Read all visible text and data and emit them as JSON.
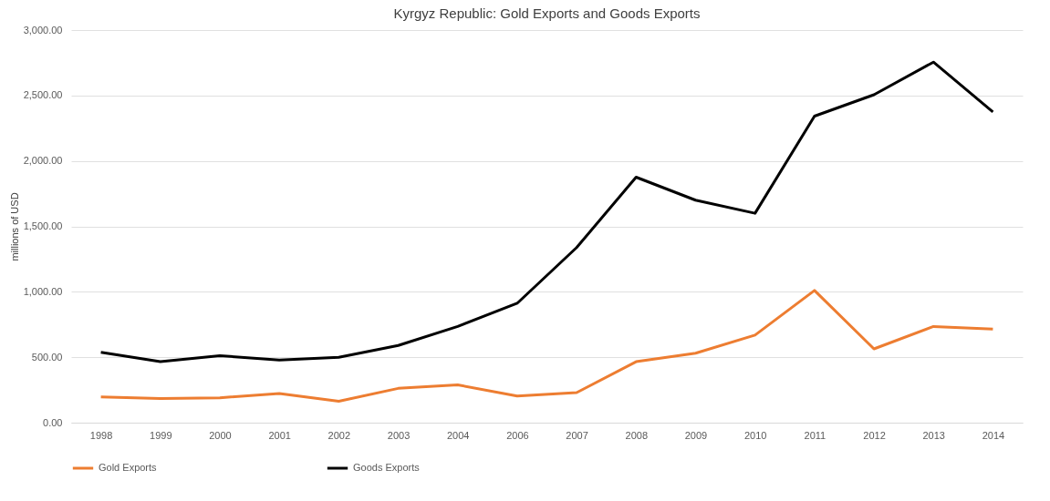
{
  "chart_data": {
    "type": "line",
    "title": "Kyrgyz Republic:  Gold Exports and Goods Exports",
    "ylabel": "millions of USD",
    "categories": [
      "1998",
      "1999",
      "2000",
      "2001",
      "2002",
      "2003",
      "2004",
      "2006",
      "2007",
      "2008",
      "2009",
      "2010",
      "2011",
      "2012",
      "2013",
      "2014"
    ],
    "series": [
      {
        "name": "Gold Exports",
        "color": "#ed7d31",
        "values": [
          197,
          184,
          190,
          223,
          164,
          262,
          289,
          203,
          230,
          466,
          531,
          669,
          1010,
          564,
          735,
          715
        ]
      },
      {
        "name": "Goods Exports",
        "color": "#000000",
        "values": [
          538,
          466,
          512,
          479,
          499,
          590,
          735,
          912,
          1338,
          1876,
          1700,
          1600,
          2342,
          2506,
          2755,
          2375
        ]
      }
    ],
    "ylim": [
      0,
      3000
    ],
    "yticks": [
      {
        "value": 0,
        "label": "0.00"
      },
      {
        "value": 500,
        "label": "500.00"
      },
      {
        "value": 1000,
        "label": "1,000.00"
      },
      {
        "value": 1500,
        "label": "1,500.00"
      },
      {
        "value": 2000,
        "label": "2,000.00"
      },
      {
        "value": 2500,
        "label": "2,500.00"
      },
      {
        "value": 3000,
        "label": "3,000.00"
      }
    ],
    "grid": "y",
    "legend": "bottom",
    "marker": "none",
    "line_style": "solid"
  }
}
